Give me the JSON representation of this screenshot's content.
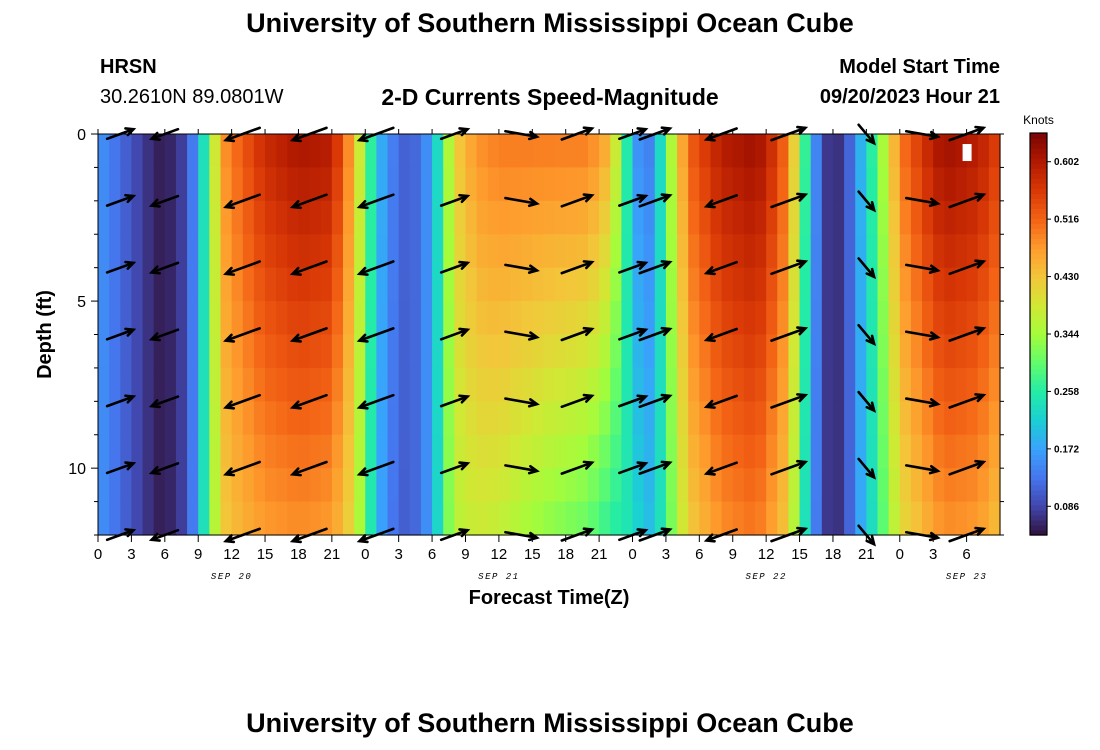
{
  "header": {
    "title": "University of Southern Mississippi Ocean Cube",
    "station": "HRSN",
    "coords": "30.2610N  89.0801W",
    "subtitle": "2-D Currents Speed-Magnitude",
    "start_label": "Model Start Time",
    "start_value": "09/20/2023 Hour 21"
  },
  "footer": {
    "title": "University of Southern Mississippi Ocean Cube"
  },
  "colors": {
    "arrow": "#000000",
    "colormap": [
      "#30123b",
      "#4145ab",
      "#4675ed",
      "#39a2fc",
      "#1bcfd4",
      "#24eca6",
      "#61fc6c",
      "#a4fc3b",
      "#d1e834",
      "#f3c63a",
      "#fe9b2d",
      "#f36315",
      "#d93806",
      "#b11901",
      "#7a0402"
    ]
  },
  "chart_data": {
    "type": "heatmap",
    "xlabel": "Forecast Time(Z)",
    "ylabel": "Depth (ft)",
    "x_range": [
      0,
      81
    ],
    "y_range": [
      0,
      12
    ],
    "x_tick_labels": [
      "0",
      "3",
      "6",
      "9",
      "12",
      "15",
      "18",
      "21",
      "0",
      "3",
      "6",
      "9",
      "12",
      "15",
      "18",
      "21",
      "0",
      "3",
      "6",
      "9",
      "12",
      "15",
      "18",
      "21",
      "0",
      "3",
      "6"
    ],
    "y_ticks": [
      0,
      5,
      10
    ],
    "y_tick_labels": [
      "0",
      "5",
      "10"
    ],
    "date_labels": [
      {
        "label": "SEP 20",
        "hours": 12
      },
      {
        "label": "SEP 21",
        "hours": 36
      },
      {
        "label": "SEP 22",
        "hours": 60
      },
      {
        "label": "SEP 23",
        "hours": 78
      }
    ],
    "colorbar": {
      "title": "Knots",
      "min": 0.043,
      "max": 0.645,
      "ticks": [
        0.086,
        0.172,
        0.258,
        0.344,
        0.43,
        0.516,
        0.602
      ],
      "tick_labels": [
        "0.086",
        "0.172",
        "0.258",
        "0.344",
        "0.430",
        "0.516",
        "0.602"
      ]
    },
    "speed_profile": {
      "hours": [
        0,
        3,
        5,
        6,
        8,
        9,
        10,
        11,
        13,
        15,
        18,
        21,
        23,
        24,
        25,
        26,
        28,
        30,
        31,
        32,
        34,
        36,
        40,
        44,
        46,
        47,
        48,
        49,
        50,
        51,
        53,
        56,
        59,
        60,
        62,
        63,
        64,
        65,
        66,
        67,
        68,
        70,
        72,
        75,
        76,
        79,
        81
      ],
      "speed_top": [
        0.16,
        0.1,
        0.06,
        0.05,
        0.09,
        0.18,
        0.3,
        0.47,
        0.53,
        0.58,
        0.61,
        0.6,
        0.45,
        0.32,
        0.21,
        0.15,
        0.1,
        0.17,
        0.29,
        0.42,
        0.48,
        0.5,
        0.5,
        0.5,
        0.45,
        0.32,
        0.19,
        0.12,
        0.16,
        0.3,
        0.52,
        0.6,
        0.62,
        0.6,
        0.5,
        0.34,
        0.2,
        0.09,
        0.06,
        0.08,
        0.15,
        0.3,
        0.5,
        0.6,
        0.62,
        0.6,
        0.55
      ],
      "speed_bottom": [
        0.16,
        0.1,
        0.06,
        0.05,
        0.09,
        0.18,
        0.3,
        0.42,
        0.45,
        0.47,
        0.48,
        0.47,
        0.4,
        0.3,
        0.2,
        0.14,
        0.1,
        0.17,
        0.28,
        0.36,
        0.38,
        0.37,
        0.33,
        0.3,
        0.26,
        0.25,
        0.24,
        0.2,
        0.2,
        0.28,
        0.42,
        0.48,
        0.5,
        0.48,
        0.42,
        0.3,
        0.18,
        0.09,
        0.06,
        0.08,
        0.15,
        0.26,
        0.4,
        0.46,
        0.48,
        0.47,
        0.43
      ]
    },
    "vector_times": [
      2,
      6,
      13,
      19,
      25,
      32,
      38,
      43,
      48,
      50,
      56,
      62,
      69,
      74,
      78
    ],
    "vector_depths": [
      0,
      2,
      4,
      6,
      8,
      10,
      12
    ],
    "vector_directions_deg": [
      20,
      200,
      200,
      200,
      200,
      20,
      350,
      20,
      20,
      20,
      200,
      20,
      310,
      350,
      20
    ],
    "vector_lengths": [
      0.7,
      0.7,
      0.9,
      0.9,
      0.9,
      0.7,
      0.8,
      0.8,
      0.7,
      0.8,
      0.8,
      0.9,
      0.6,
      0.8,
      0.9
    ],
    "missing_value_mark": {
      "hours": 78,
      "depth": 0.3
    }
  }
}
